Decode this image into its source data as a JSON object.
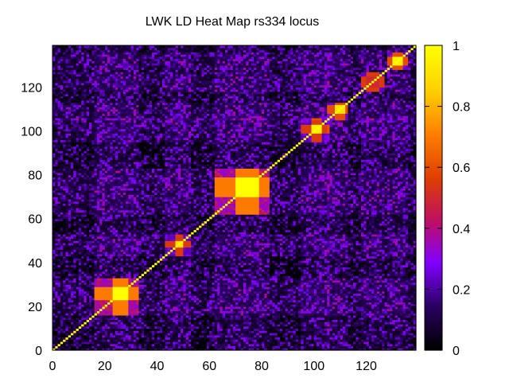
{
  "chart_data": {
    "type": "heatmap",
    "title": "LWK LD Heat Map rs334 locus",
    "xlabel": "",
    "ylabel": "",
    "x_range": [
      0,
      139
    ],
    "y_range": [
      0,
      139
    ],
    "x_ticks": [
      0,
      20,
      40,
      60,
      80,
      100,
      120
    ],
    "y_ticks": [
      0,
      20,
      40,
      60,
      80,
      100,
      120
    ],
    "colorbar": {
      "range": [
        0,
        1
      ],
      "ticks": [
        0,
        0.2,
        0.4,
        0.6,
        0.8,
        1
      ],
      "tick_labels": [
        "0",
        "0.2",
        "0.4",
        "0.6",
        "0.8",
        "1"
      ],
      "palette": [
        "#000000",
        "#2a0060",
        "#8000ff",
        "#c01060",
        "#e04000",
        "#ff8000",
        "#ffd000",
        "#ffff00"
      ]
    },
    "n_snps": 139,
    "diagonal_value": 1,
    "background_value_range": [
      0,
      0.2
    ],
    "ld_blocks": [
      {
        "start": 16,
        "end": 32,
        "peak_start": 23,
        "peak_end": 28,
        "peak_value": 1,
        "block_value": 0.45
      },
      {
        "start": 43,
        "end": 52,
        "peak_start": 47,
        "peak_end": 49,
        "peak_value": 0.9,
        "block_value": 0.3
      },
      {
        "start": 62,
        "end": 82,
        "peak_start": 70,
        "peak_end": 78,
        "peak_value": 1,
        "block_value": 0.45
      },
      {
        "start": 95,
        "end": 105,
        "peak_start": 99,
        "peak_end": 102,
        "peak_value": 0.95,
        "block_value": 0.3
      },
      {
        "start": 105,
        "end": 112,
        "peak_start": 108,
        "peak_end": 111,
        "peak_value": 0.9,
        "block_value": 0.35
      },
      {
        "start": 118,
        "end": 126,
        "peak_start": 120,
        "peak_end": 124,
        "peak_value": 0.5,
        "block_value": 0.3
      },
      {
        "start": 128,
        "end": 135,
        "peak_start": 130,
        "peak_end": 133,
        "peak_value": 0.95,
        "block_value": 0.35
      }
    ],
    "grid": false,
    "legend": "colorbar-right"
  }
}
